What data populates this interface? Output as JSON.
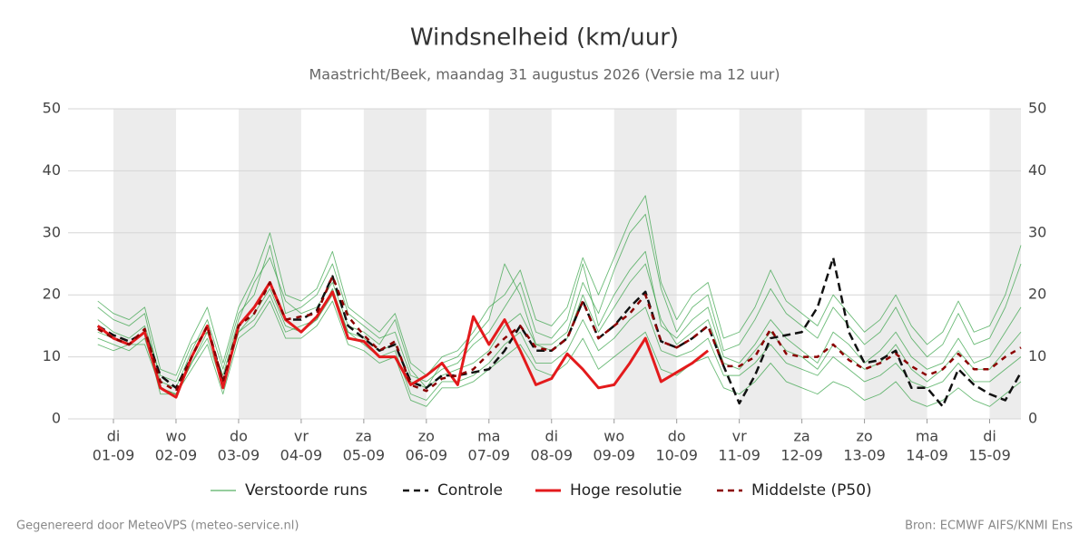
{
  "chart_data": {
    "type": "line",
    "title": "Windsnelheid (km/uur)",
    "subtitle": "Maastricht/Beek, maandag 31 augustus 2026 (Versie ma 12 uur)",
    "footer_left": "Gegenereerd door MeteoVPS (meteo-service.nl)",
    "footer_right": "Bron: ECMWF AIFS/KNMI Ens",
    "x": [
      -0.25,
      0,
      0.25,
      0.5,
      0.75,
      1,
      1.25,
      1.5,
      1.75,
      2,
      2.25,
      2.5,
      2.75,
      3,
      3.25,
      3.5,
      3.75,
      4,
      4.25,
      4.5,
      4.75,
      5,
      5.25,
      5.5,
      5.75,
      6,
      6.25,
      6.5,
      6.75,
      7,
      7.25,
      7.5,
      7.75,
      8,
      8.25,
      8.5,
      8.75,
      9,
      9.25,
      9.5,
      9.75,
      10,
      10.25,
      10.5,
      10.75,
      11,
      11.25,
      11.5,
      11.75,
      12,
      12.25,
      12.5,
      12.75,
      13,
      13.25,
      13.5,
      13.75,
      14,
      14.25,
      14.5
    ],
    "xlim": [
      -0.725,
      14.5
    ],
    "xticks": [
      {
        "value": 0,
        "label": "01-09"
      },
      {
        "value": 1,
        "label": "02-09"
      },
      {
        "value": 2,
        "label": "03-09"
      },
      {
        "value": 3,
        "label": "04-09"
      },
      {
        "value": 4,
        "label": "05-09"
      },
      {
        "value": 5,
        "label": "06-09"
      },
      {
        "value": 6,
        "label": "07-09"
      },
      {
        "value": 7,
        "label": "08-09"
      },
      {
        "value": 8,
        "label": "09-09"
      },
      {
        "value": 9,
        "label": "10-09"
      },
      {
        "value": 10,
        "label": "11-09"
      },
      {
        "value": 11,
        "label": "12-09"
      },
      {
        "value": 12,
        "label": "13-09"
      },
      {
        "value": 13,
        "label": "14-09"
      },
      {
        "value": 14,
        "label": "15-09"
      }
    ],
    "weekdays": [
      "di",
      "wo",
      "do",
      "vr",
      "za",
      "zo",
      "ma",
      "di",
      "wo",
      "do",
      "vr",
      "za",
      "zo",
      "ma",
      "di"
    ],
    "ylim": [
      0,
      50
    ],
    "yticks": [
      0,
      10,
      20,
      30,
      40,
      50
    ],
    "grid": true,
    "series": [
      {
        "name": "Verstoorde runs",
        "color": "#2e9e3e",
        "members": [
          [
            18,
            16,
            15,
            17,
            6,
            5,
            11,
            16,
            8,
            17,
            20,
            28,
            17,
            18,
            20,
            25,
            17,
            15,
            13,
            14,
            7,
            6,
            8,
            9,
            12,
            14,
            18,
            22,
            14,
            13,
            16,
            25,
            15,
            20,
            24,
            27,
            15,
            13,
            16,
            18,
            10,
            9,
            12,
            16,
            13,
            11,
            9,
            14,
            12,
            9,
            11,
            14,
            10,
            8,
            9,
            13,
            9,
            10,
            14,
            18
          ],
          [
            13,
            12,
            11,
            13,
            5,
            4,
            9,
            13,
            5,
            14,
            16,
            20,
            14,
            15,
            16,
            21,
            14,
            12,
            10,
            11,
            4,
            3,
            6,
            6,
            7,
            9,
            12,
            14,
            9,
            9,
            11,
            16,
            11,
            13,
            16,
            18,
            11,
            10,
            11,
            13,
            7,
            7,
            9,
            12,
            9,
            8,
            7,
            10,
            8,
            6,
            7,
            9,
            6,
            5,
            6,
            9,
            6,
            6,
            8,
            10
          ],
          [
            16,
            14,
            13,
            15,
            7,
            6,
            12,
            14,
            7,
            16,
            22,
            26,
            19,
            17,
            18,
            22,
            15,
            14,
            12,
            16,
            8,
            5,
            9,
            10,
            13,
            16,
            25,
            20,
            12,
            12,
            14,
            22,
            17,
            24,
            30,
            33,
            21,
            14,
            18,
            20,
            11,
            12,
            16,
            21,
            17,
            15,
            13,
            18,
            15,
            12,
            14,
            18,
            13,
            10,
            12,
            17,
            12,
            13,
            18,
            25
          ],
          [
            14,
            13,
            12,
            14,
            4,
            4,
            8,
            12,
            4,
            13,
            15,
            19,
            13,
            13,
            15,
            19,
            12,
            11,
            9,
            10,
            3,
            2,
            5,
            5,
            6,
            8,
            10,
            12,
            8,
            7,
            9,
            13,
            8,
            10,
            12,
            14,
            8,
            7,
            9,
            10,
            5,
            4,
            6,
            9,
            6,
            5,
            4,
            6,
            5,
            3,
            4,
            6,
            3,
            2,
            3,
            5,
            3,
            2,
            4,
            6
          ],
          [
            19,
            17,
            16,
            18,
            8,
            7,
            13,
            18,
            9,
            18,
            23,
            30,
            20,
            19,
            21,
            27,
            18,
            16,
            14,
            17,
            9,
            7,
            10,
            11,
            14,
            18,
            20,
            24,
            16,
            15,
            18,
            26,
            20,
            26,
            32,
            36,
            22,
            16,
            20,
            22,
            13,
            14,
            18,
            24,
            19,
            17,
            15,
            20,
            17,
            14,
            16,
            20,
            15,
            12,
            14,
            19,
            14,
            15,
            20,
            28
          ],
          [
            12,
            11,
            12,
            12,
            5,
            4,
            9,
            14,
            6,
            14,
            17,
            21,
            15,
            14,
            16,
            20,
            14,
            13,
            11,
            12,
            6,
            5,
            7,
            8,
            9,
            11,
            15,
            17,
            12,
            11,
            13,
            20,
            14,
            18,
            22,
            25,
            16,
            12,
            14,
            16,
            9,
            8,
            11,
            14,
            11,
            10,
            8,
            12,
            10,
            8,
            9,
            12,
            8,
            6,
            8,
            11,
            8,
            8,
            11,
            14
          ]
        ]
      },
      {
        "name": "Controle",
        "color": "#111111",
        "dash": true,
        "values": [
          15,
          13.5,
          12.5,
          14,
          7,
          5,
          10,
          15,
          6,
          15,
          18,
          22,
          16,
          16,
          17.5,
          23,
          15,
          13,
          11,
          12,
          6,
          5,
          7,
          7,
          7.5,
          8,
          11,
          15,
          11,
          11,
          13,
          19,
          13,
          15,
          18,
          20.5,
          12.5,
          11.5,
          13,
          15,
          8.5,
          2.5,
          7,
          13,
          13.5,
          14,
          18,
          26,
          14,
          9,
          9.5,
          11,
          5,
          5,
          2,
          8,
          5.5,
          4,
          3,
          7.5
        ]
      },
      {
        "name": "Hoge resolutie",
        "color": "#e31a1c",
        "dash": false,
        "values": [
          15,
          13,
          12,
          14,
          5,
          3.5,
          10,
          15,
          5,
          15,
          18,
          22,
          16,
          14,
          16.5,
          20.5,
          13,
          12.5,
          10,
          10,
          5.5,
          7,
          9,
          5.5,
          16.5,
          12,
          16,
          11,
          5.5,
          6.5,
          10.5,
          8,
          5,
          5.5,
          9,
          13,
          6,
          7.5,
          9,
          11,
          null,
          null,
          null,
          null,
          null,
          null,
          null,
          null,
          null,
          null,
          null,
          null,
          null,
          null,
          null,
          null,
          null,
          null,
          null,
          null
        ]
      },
      {
        "name": "Middelste (P50)",
        "color": "#8b0000",
        "dash": true,
        "values": [
          14.5,
          13,
          12,
          14.5,
          6,
          4.5,
          10,
          15,
          6,
          15,
          17,
          22,
          16,
          16.5,
          17,
          23,
          16.5,
          13.5,
          11,
          12.5,
          5.5,
          4.5,
          6.5,
          7,
          8,
          10.5,
          13,
          15,
          11.5,
          11,
          13,
          19,
          13,
          15,
          17,
          20,
          12.5,
          11.5,
          13,
          15,
          8.5,
          8.5,
          10,
          14.5,
          10.5,
          10,
          10,
          12,
          9.5,
          8,
          9,
          10.5,
          8.5,
          7,
          8,
          10.5,
          8,
          8,
          10,
          11.5
        ]
      }
    ]
  }
}
